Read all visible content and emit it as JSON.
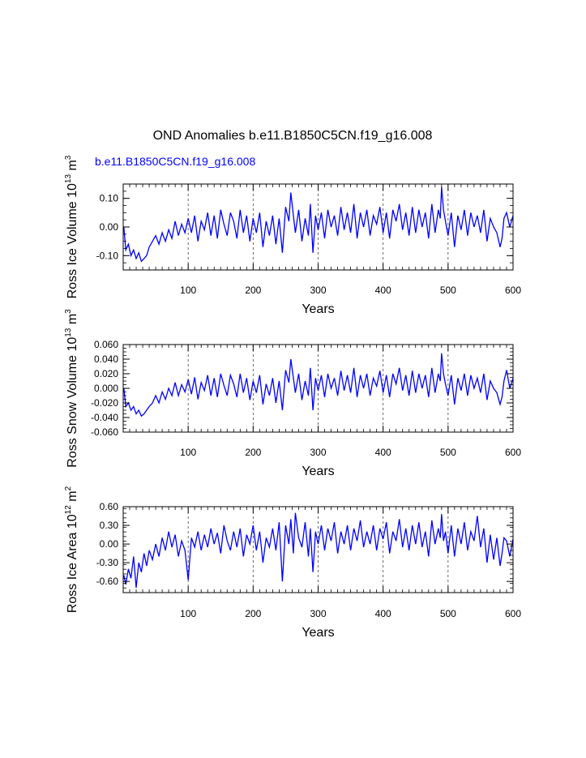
{
  "figure": {
    "title": "OND Anomalies b.e11.B1850C5CN.f19_g16.008",
    "subtitle": "b.e11.B1850C5CN.f19_g16.008",
    "line_color": "#0000ff"
  },
  "chart_data": [
    {
      "type": "line",
      "title": "",
      "xlabel": "Years",
      "ylabel_main": "Ross Ice Volume 10",
      "ylabel_exp1": "13",
      "ylabel_unit": " m",
      "ylabel_exp2": "3",
      "xlim": [
        0,
        600
      ],
      "ylim": [
        -0.15,
        0.15
      ],
      "xticks": [
        100,
        200,
        300,
        400,
        500,
        600
      ],
      "xticklabels": [
        "100",
        "200",
        "300",
        "400",
        "500",
        "600"
      ],
      "yticks": [
        -0.1,
        0.0,
        0.1
      ],
      "yticklabels": [
        "-0.10",
        "0.00",
        "0.10"
      ],
      "gridlines_x": [
        100,
        200,
        300,
        400,
        500
      ],
      "series": [
        {
          "name": "b.e11.B1850C5CN.f19_g16.008",
          "x": [
            1,
            4,
            8,
            12,
            16,
            20,
            24,
            28,
            32,
            36,
            40,
            45,
            50,
            55,
            60,
            65,
            70,
            75,
            80,
            85,
            90,
            95,
            100,
            105,
            110,
            115,
            120,
            125,
            130,
            135,
            140,
            145,
            150,
            155,
            160,
            165,
            170,
            175,
            180,
            185,
            190,
            195,
            200,
            205,
            210,
            215,
            220,
            225,
            230,
            235,
            240,
            245,
            250,
            255,
            258,
            262,
            265,
            270,
            275,
            280,
            285,
            288,
            292,
            296,
            300,
            305,
            310,
            315,
            320,
            325,
            330,
            335,
            340,
            345,
            350,
            355,
            360,
            365,
            370,
            375,
            380,
            385,
            390,
            395,
            400,
            405,
            410,
            415,
            420,
            425,
            430,
            435,
            440,
            445,
            450,
            455,
            460,
            465,
            470,
            475,
            480,
            485,
            488,
            490,
            493,
            496,
            500,
            505,
            510,
            515,
            520,
            525,
            530,
            535,
            540,
            545,
            550,
            555,
            560,
            565,
            570,
            575,
            580,
            583,
            586,
            590,
            595,
            600
          ],
          "values": [
            0.0,
            -0.08,
            -0.06,
            -0.1,
            -0.08,
            -0.11,
            -0.09,
            -0.12,
            -0.11,
            -0.1,
            -0.07,
            -0.05,
            -0.03,
            -0.06,
            -0.02,
            -0.05,
            -0.01,
            -0.04,
            0.02,
            -0.03,
            0.01,
            -0.02,
            0.03,
            -0.02,
            0.04,
            -0.05,
            0.02,
            -0.01,
            0.05,
            -0.03,
            0.04,
            -0.04,
            0.06,
            0.01,
            -0.03,
            0.05,
            0.02,
            -0.04,
            0.06,
            -0.02,
            0.04,
            -0.05,
            0.03,
            -0.02,
            0.05,
            -0.07,
            0.02,
            -0.03,
            0.04,
            -0.06,
            0.03,
            -0.09,
            0.07,
            0.02,
            0.12,
            0.04,
            -0.02,
            0.06,
            -0.05,
            0.03,
            -0.03,
            0.08,
            -0.09,
            0.04,
            -0.01,
            0.05,
            -0.04,
            0.06,
            0.0,
            0.04,
            -0.03,
            0.07,
            -0.01,
            0.05,
            -0.02,
            0.08,
            -0.04,
            0.05,
            0.0,
            0.06,
            -0.03,
            0.04,
            0.01,
            0.07,
            -0.02,
            0.05,
            -0.04,
            0.06,
            0.02,
            0.08,
            -0.01,
            0.05,
            -0.03,
            0.07,
            -0.02,
            0.06,
            0.0,
            0.05,
            -0.04,
            0.08,
            -0.02,
            0.06,
            0.03,
            0.14,
            0.06,
            0.02,
            -0.03,
            0.05,
            -0.07,
            0.04,
            -0.01,
            0.06,
            -0.03,
            0.05,
            0.0,
            0.04,
            -0.02,
            0.06,
            -0.05,
            0.03,
            0.0,
            -0.02,
            -0.07,
            -0.04,
            0.03,
            0.05,
            0.0,
            0.04
          ]
        }
      ]
    },
    {
      "type": "line",
      "title": "",
      "xlabel": "Years",
      "ylabel_main": "Ross Snow Volume 10",
      "ylabel_exp1": "13",
      "ylabel_unit": " m",
      "ylabel_exp2": "3",
      "xlim": [
        0,
        600
      ],
      "ylim": [
        -0.06,
        0.06
      ],
      "xticks": [
        100,
        200,
        300,
        400,
        500,
        600
      ],
      "xticklabels": [
        "100",
        "200",
        "300",
        "400",
        "500",
        "600"
      ],
      "yticks": [
        -0.06,
        -0.04,
        -0.02,
        0.0,
        0.02,
        0.04,
        0.06
      ],
      "yticklabels": [
        "-0.060",
        "-0.040",
        "-0.020",
        "0.000",
        "0.020",
        "0.040",
        "0.060"
      ],
      "gridlines_x": [
        100,
        200,
        300,
        400,
        500
      ],
      "series": [
        {
          "name": "b.e11.B1850C5CN.f19_g16.008",
          "x": [
            1,
            4,
            8,
            12,
            16,
            20,
            24,
            28,
            32,
            36,
            40,
            45,
            50,
            55,
            60,
            65,
            70,
            75,
            80,
            85,
            90,
            95,
            100,
            105,
            110,
            115,
            120,
            125,
            130,
            135,
            140,
            145,
            150,
            155,
            160,
            165,
            170,
            175,
            180,
            185,
            190,
            195,
            200,
            205,
            210,
            215,
            220,
            225,
            230,
            235,
            240,
            245,
            250,
            255,
            258,
            262,
            265,
            270,
            275,
            280,
            285,
            288,
            292,
            296,
            300,
            305,
            310,
            315,
            320,
            325,
            330,
            335,
            340,
            345,
            350,
            355,
            360,
            365,
            370,
            375,
            380,
            385,
            390,
            395,
            400,
            405,
            410,
            415,
            420,
            425,
            430,
            435,
            440,
            445,
            450,
            455,
            460,
            465,
            470,
            475,
            480,
            485,
            488,
            490,
            493,
            496,
            500,
            505,
            510,
            515,
            520,
            525,
            530,
            535,
            540,
            545,
            550,
            555,
            560,
            565,
            570,
            575,
            580,
            583,
            586,
            590,
            595,
            600
          ],
          "values": [
            0.0,
            -0.025,
            -0.02,
            -0.03,
            -0.025,
            -0.035,
            -0.03,
            -0.038,
            -0.035,
            -0.03,
            -0.025,
            -0.02,
            -0.01,
            -0.02,
            -0.005,
            -0.015,
            0.0,
            -0.01,
            0.008,
            -0.01,
            0.005,
            -0.005,
            0.012,
            -0.008,
            0.015,
            -0.015,
            0.008,
            -0.003,
            0.018,
            -0.01,
            0.014,
            -0.012,
            0.02,
            0.004,
            -0.01,
            0.018,
            0.006,
            -0.012,
            0.02,
            -0.006,
            0.014,
            -0.016,
            0.01,
            -0.006,
            0.018,
            -0.022,
            0.006,
            -0.01,
            0.014,
            -0.02,
            0.01,
            -0.03,
            0.025,
            0.008,
            0.04,
            0.014,
            -0.006,
            0.02,
            -0.016,
            0.01,
            -0.01,
            0.028,
            -0.03,
            0.014,
            -0.003,
            0.018,
            -0.012,
            0.02,
            0.0,
            0.014,
            -0.01,
            0.024,
            -0.003,
            0.018,
            -0.006,
            0.028,
            -0.012,
            0.018,
            0.0,
            0.02,
            -0.01,
            0.014,
            0.003,
            0.024,
            -0.006,
            0.018,
            -0.012,
            0.02,
            0.006,
            0.028,
            -0.003,
            0.018,
            -0.01,
            0.024,
            -0.006,
            0.02,
            0.0,
            0.018,
            -0.012,
            0.028,
            -0.006,
            0.02,
            0.01,
            0.048,
            0.02,
            0.006,
            -0.01,
            0.018,
            -0.022,
            0.014,
            -0.003,
            0.02,
            -0.01,
            0.018,
            0.0,
            0.014,
            -0.006,
            0.02,
            -0.016,
            0.01,
            0.0,
            -0.006,
            -0.022,
            -0.012,
            0.01,
            0.025,
            0.0,
            0.014
          ]
        }
      ]
    },
    {
      "type": "line",
      "title": "",
      "xlabel": "Years",
      "ylabel_main": "Ross Ice Area 10",
      "ylabel_exp1": "12",
      "ylabel_unit": " m",
      "ylabel_exp2": "2",
      "xlim": [
        0,
        600
      ],
      "ylim": [
        -0.78,
        0.6
      ],
      "xticks": [
        100,
        200,
        300,
        400,
        500,
        600
      ],
      "xticklabels": [
        "100",
        "200",
        "300",
        "400",
        "500",
        "600"
      ],
      "yticks": [
        -0.6,
        -0.3,
        0.0,
        0.3,
        0.6
      ],
      "yticklabels": [
        "-0.60",
        "-0.30",
        "0.00",
        "0.30",
        "0.60"
      ],
      "gridlines_x": [
        100,
        200,
        300,
        400,
        500
      ],
      "series": [
        {
          "name": "b.e11.B1850C5CN.f19_g16.008",
          "x": [
            1,
            4,
            8,
            12,
            16,
            20,
            24,
            28,
            32,
            36,
            40,
            45,
            50,
            55,
            60,
            65,
            70,
            75,
            80,
            85,
            90,
            95,
            100,
            105,
            110,
            115,
            120,
            125,
            130,
            135,
            140,
            145,
            150,
            155,
            160,
            165,
            170,
            175,
            180,
            185,
            190,
            195,
            200,
            205,
            210,
            215,
            220,
            225,
            230,
            235,
            240,
            245,
            250,
            255,
            258,
            262,
            265,
            270,
            275,
            280,
            285,
            288,
            292,
            296,
            300,
            305,
            310,
            315,
            320,
            325,
            330,
            335,
            340,
            345,
            350,
            355,
            360,
            365,
            370,
            375,
            380,
            385,
            390,
            395,
            400,
            405,
            410,
            415,
            420,
            425,
            430,
            435,
            440,
            445,
            450,
            455,
            460,
            465,
            470,
            475,
            480,
            485,
            488,
            490,
            493,
            496,
            500,
            505,
            510,
            515,
            520,
            525,
            530,
            535,
            540,
            545,
            550,
            555,
            560,
            565,
            570,
            575,
            580,
            583,
            586,
            590,
            595,
            600
          ],
          "values": [
            -0.5,
            -0.65,
            -0.4,
            -0.55,
            -0.2,
            -0.7,
            -0.3,
            -0.45,
            -0.15,
            -0.35,
            -0.1,
            -0.25,
            0.0,
            -0.2,
            0.1,
            -0.1,
            0.2,
            -0.05,
            0.15,
            -0.2,
            0.05,
            -0.1,
            -0.58,
            0.1,
            -0.05,
            0.2,
            -0.1,
            0.15,
            -0.05,
            0.25,
            0.0,
            0.18,
            -0.15,
            0.3,
            0.05,
            -0.1,
            0.2,
            -0.05,
            0.25,
            -0.2,
            0.15,
            0.0,
            0.3,
            -0.1,
            0.2,
            -0.3,
            0.1,
            -0.05,
            0.25,
            -0.1,
            0.35,
            -0.6,
            0.3,
            0.0,
            0.4,
            -0.15,
            0.5,
            0.1,
            -0.05,
            0.35,
            -0.2,
            0.25,
            -0.45,
            0.2,
            0.0,
            0.3,
            -0.1,
            0.25,
            0.05,
            0.35,
            -0.15,
            0.2,
            0.0,
            0.3,
            -0.1,
            0.25,
            0.05,
            0.38,
            -0.05,
            0.2,
            0.0,
            0.3,
            -0.1,
            0.25,
            0.08,
            0.35,
            -0.15,
            0.2,
            0.05,
            0.4,
            -0.05,
            0.25,
            -0.1,
            0.3,
            0.0,
            0.35,
            -0.05,
            0.2,
            -0.2,
            0.38,
            0.0,
            0.25,
            0.1,
            0.48,
            0.05,
            0.2,
            -0.15,
            0.3,
            -0.2,
            0.25,
            0.0,
            0.35,
            -0.1,
            0.2,
            0.05,
            0.45,
            -0.05,
            0.25,
            -0.3,
            0.15,
            -0.25,
            0.1,
            -0.35,
            -0.15,
            0.1,
            0.05,
            -0.2,
            0.08
          ]
        }
      ]
    }
  ]
}
